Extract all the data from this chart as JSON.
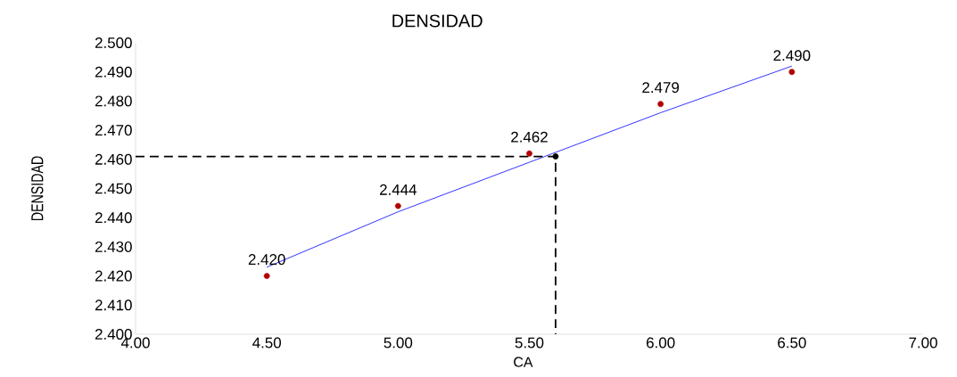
{
  "chart_data": {
    "type": "scatter",
    "title": "DENSIDAD",
    "xlabel": "CA",
    "ylabel": "DENSIDAD",
    "xlim": [
      4.0,
      7.0
    ],
    "ylim": [
      2.4,
      2.5
    ],
    "xticks": [
      {
        "value": 4.0,
        "label": "4.00"
      },
      {
        "value": 4.5,
        "label": "4.50"
      },
      {
        "value": 5.0,
        "label": "5.00"
      },
      {
        "value": 5.5,
        "label": "5.50"
      },
      {
        "value": 6.0,
        "label": "6.00"
      },
      {
        "value": 6.5,
        "label": "6.50"
      },
      {
        "value": 7.0,
        "label": "7.00"
      }
    ],
    "yticks": [
      {
        "value": 2.4,
        "label": "2.400"
      },
      {
        "value": 2.41,
        "label": "2.410"
      },
      {
        "value": 2.42,
        "label": "2.420"
      },
      {
        "value": 2.43,
        "label": "2.430"
      },
      {
        "value": 2.44,
        "label": "2.440"
      },
      {
        "value": 2.45,
        "label": "2.450"
      },
      {
        "value": 2.46,
        "label": "2.460"
      },
      {
        "value": 2.47,
        "label": "2.470"
      },
      {
        "value": 2.48,
        "label": "2.480"
      },
      {
        "value": 2.49,
        "label": "2.490"
      },
      {
        "value": 2.5,
        "label": "2.500"
      }
    ],
    "grid": false,
    "series": [
      {
        "type": "line",
        "color": "#0000ff",
        "marker": "none",
        "line_style": "solid",
        "x": [
          4.5,
          5.0,
          5.5,
          6.0,
          6.5
        ],
        "values": [
          2.423,
          2.442,
          2.459,
          2.476,
          2.492
        ]
      },
      {
        "type": "line",
        "color": "#000000",
        "marker": "none",
        "line_style": "dashed",
        "x": [
          4.0,
          5.6,
          5.6
        ],
        "values": [
          2.461,
          2.461,
          2.4
        ]
      },
      {
        "color": "#b00000",
        "marker": "circle",
        "x": [
          4.5,
          5.0,
          5.5,
          6.0,
          6.5
        ],
        "values": [
          2.42,
          2.444,
          2.462,
          2.479,
          2.49
        ],
        "value_labels": [
          "2.420",
          "2.444",
          "2.462",
          "2.479",
          "2.490"
        ]
      },
      {
        "color": "#000000",
        "marker": "circle",
        "x": [
          5.6
        ],
        "values": [
          2.461
        ]
      }
    ]
  }
}
